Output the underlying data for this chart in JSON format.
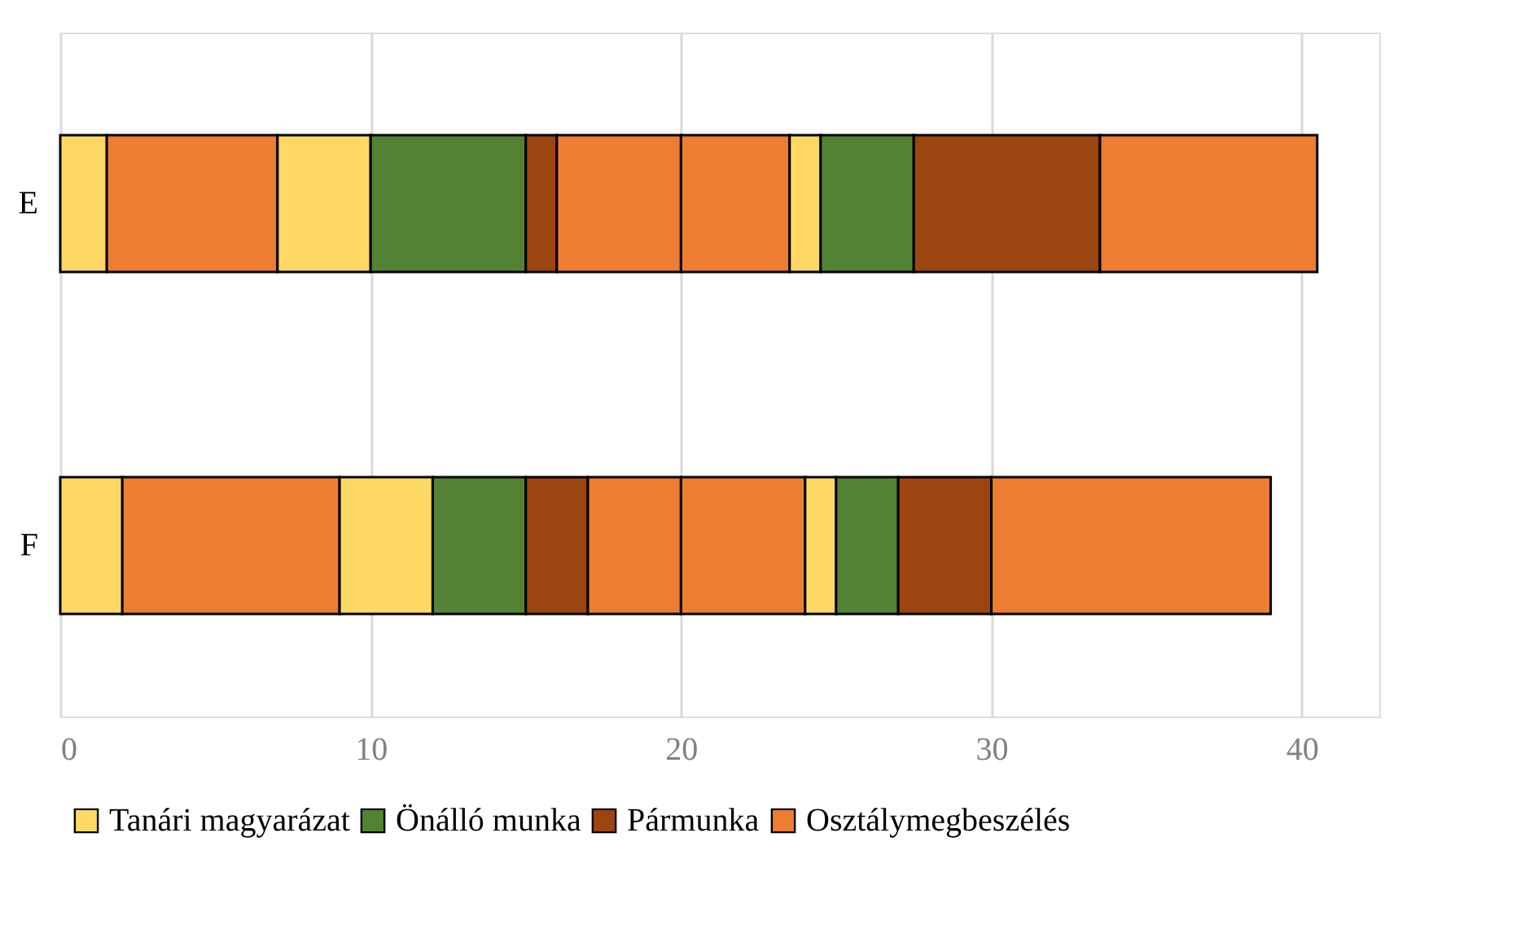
{
  "chart_data": {
    "type": "bar",
    "orientation": "horizontal",
    "stacked": true,
    "categories": [
      "E",
      "F"
    ],
    "series": [
      {
        "name": "Tanári magyarázat",
        "color": "#fdd865",
        "values": [
          1.5,
          2
        ]
      },
      {
        "color": "#ed7d31",
        "values": [
          5.5,
          7
        ]
      },
      {
        "color": "#fdd865",
        "values": [
          3,
          3
        ]
      },
      {
        "name": "Önálló munka",
        "color": "#548235",
        "values": [
          5,
          3
        ]
      },
      {
        "name": "Pármunka",
        "color": "#9c4510",
        "values": [
          1,
          2
        ]
      },
      {
        "color": "#ed7d31",
        "values": [
          4,
          3
        ]
      },
      {
        "color": "#ed7d31",
        "values": [
          3.5,
          4
        ]
      },
      {
        "color": "#fdd865",
        "values": [
          1,
          1
        ]
      },
      {
        "color": "#548235",
        "values": [
          3,
          2
        ]
      },
      {
        "color": "#9c4510",
        "values": [
          6,
          3
        ]
      },
      {
        "name": "Osztálymegbeszélés",
        "color": "#ed7d31",
        "values": [
          7,
          9
        ]
      }
    ],
    "xlim": [
      0,
      42.5
    ],
    "xticks": [
      0,
      10,
      20,
      30,
      40
    ],
    "grid": "x",
    "legend": "bottom"
  }
}
